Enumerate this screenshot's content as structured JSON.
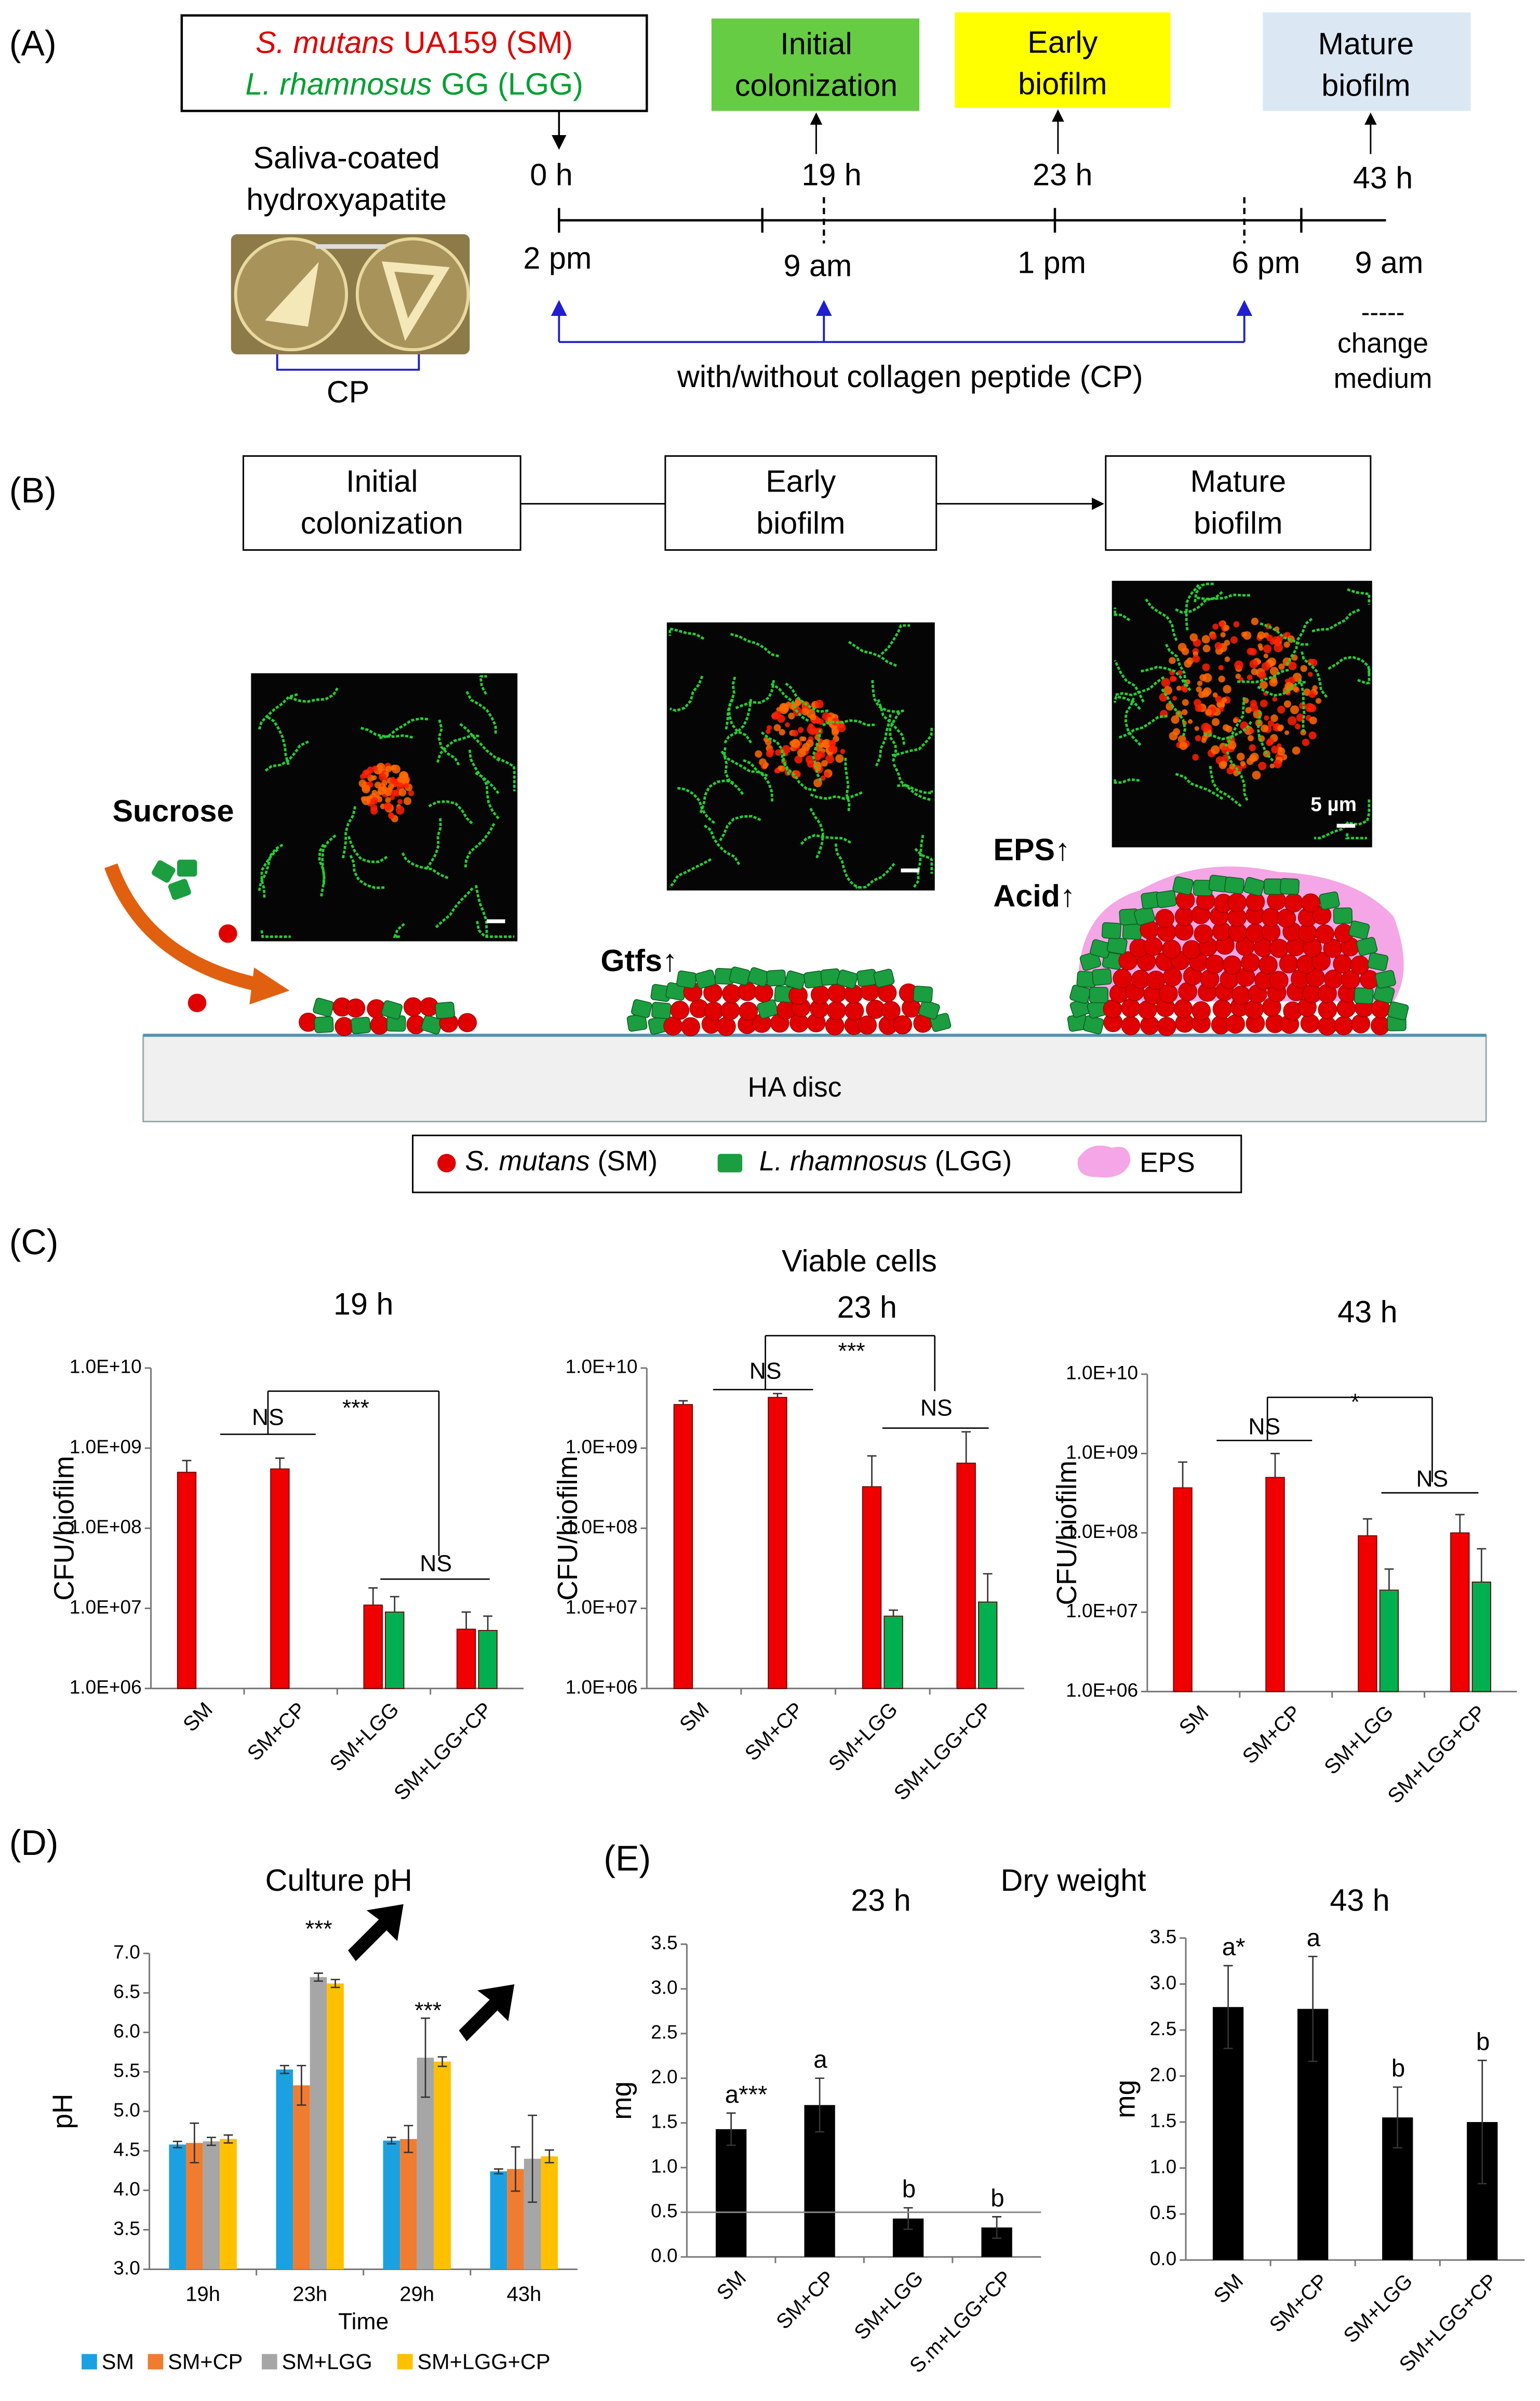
{
  "panel_a": {
    "label": "(A)",
    "strains": [
      {
        "species": "S. mutans",
        "strain": "UA159 (SM)"
      },
      {
        "species": "L. rhamnosus",
        "strain": "GG (LGG)"
      }
    ],
    "stages": [
      [
        "Initial",
        "colonization"
      ],
      [
        "Early",
        "biofilm"
      ],
      [
        "Mature",
        "biofilm"
      ]
    ],
    "times": [
      "0 h",
      "19 h",
      "23 h",
      "43 h"
    ],
    "clock": [
      "2 pm",
      "9 am",
      "1 pm",
      "6 pm",
      "9 am"
    ],
    "substrate": [
      "Saliva-coated",
      "hydroxyapatite"
    ],
    "photo_label": "CP",
    "treatment": "with/without collagen peptide (CP)",
    "note": [
      "-----",
      "change",
      "medium"
    ]
  },
  "panel_b": {
    "label": "(B)",
    "stages": [
      [
        "Initial",
        "colonization"
      ],
      [
        "Early",
        "biofilm"
      ],
      [
        "Mature",
        "biofilm"
      ]
    ],
    "sucrose": "Sucrose",
    "gtfs": "Gtfs↑",
    "eps": "EPS↑",
    "acid": "Acid↑",
    "scale_bar": "5 µm",
    "disc": "HA disc",
    "legend": [
      {
        "species": "S. mutans",
        "abbr": "(SM)"
      },
      {
        "species": "L. rhamnosus",
        "abbr": "(LGG)"
      },
      {
        "abbr": "EPS"
      }
    ]
  },
  "panel_c": {
    "label": "(C)",
    "title": "Viable cells"
  },
  "panel_d": {
    "label": "(D)"
  },
  "panel_e": {
    "label": "(E)",
    "title": "Dry weight"
  },
  "chart_data": [
    {
      "type": "bar",
      "title": "19 h",
      "ylabel": "CFU/biofilm",
      "log_y": true,
      "categories": [
        "SM",
        "SM+CP",
        "SM+LGG",
        "SM+LGG+CP"
      ],
      "series": [
        {
          "color": "#f00000",
          "values": [
            500000000,
            550000000,
            11000000,
            5500000
          ],
          "errors": [
            200000000,
            200000000,
            7000000,
            3500000
          ]
        },
        {
          "color": "#00b050",
          "values": [
            null,
            null,
            9000000,
            5300000
          ],
          "errors": [
            null,
            null,
            5000000,
            2700000
          ]
        }
      ],
      "ylim": [
        1000000,
        10000000000
      ],
      "yticks": [
        {
          "value": 1000000,
          "label": "1.0E+06"
        },
        {
          "value": 10000000,
          "label": "1.0E+07"
        },
        {
          "value": 100000000,
          "label": "1.0E+08"
        },
        {
          "value": 1000000000,
          "label": "1.0E+09"
        },
        {
          "value": 10000000000,
          "label": "1.0E+10"
        }
      ],
      "annotations": [
        "NS",
        "***",
        "NS"
      ]
    },
    {
      "type": "bar",
      "title": "23 h",
      "ylabel": "CFU/biofilm",
      "log_y": true,
      "categories": [
        "SM",
        "SM+CP",
        "SM+LGG",
        "SM+LGG+CP"
      ],
      "series": [
        {
          "color": "#f00000",
          "values": [
            3500000000,
            4300000000,
            330000000,
            650000000
          ],
          "errors": [
            400000000,
            500000000,
            470000000,
            950000000
          ]
        },
        {
          "color": "#00b050",
          "values": [
            null,
            null,
            8000000,
            12000000
          ],
          "errors": [
            null,
            null,
            1500000,
            15000000
          ]
        }
      ],
      "ylim": [
        1000000,
        10000000000
      ],
      "yticks": [
        {
          "value": 1000000,
          "label": "1.0E+06"
        },
        {
          "value": 10000000,
          "label": "1.0E+07"
        },
        {
          "value": 100000000,
          "label": "1.0E+08"
        },
        {
          "value": 1000000000,
          "label": "1.0E+09"
        },
        {
          "value": 10000000000,
          "label": "1.0E+10"
        }
      ],
      "annotations": [
        "NS",
        "***",
        "NS"
      ]
    },
    {
      "type": "bar",
      "title": "43 h",
      "ylabel": "CFU/biofilm",
      "log_y": true,
      "categories": [
        "SM",
        "SM+CP",
        "SM+LGG",
        "SM+LGG+CP"
      ],
      "series": [
        {
          "color": "#f00000",
          "values": [
            370000000,
            500000000,
            92000000,
            100000000
          ],
          "errors": [
            410000000,
            500000000,
            58000000,
            70000000
          ]
        },
        {
          "color": "#00b050",
          "values": [
            null,
            null,
            19000000,
            24000000
          ],
          "errors": [
            null,
            null,
            16000000,
            39000000
          ]
        }
      ],
      "ylim": [
        1000000,
        10000000000
      ],
      "yticks": [
        {
          "value": 1000000,
          "label": "1.0E+06"
        },
        {
          "value": 10000000,
          "label": "1.0E+07"
        },
        {
          "value": 100000000,
          "label": "1.0E+08"
        },
        {
          "value": 1000000000,
          "label": "1.0E+09"
        },
        {
          "value": 10000000000,
          "label": "1.0E+10"
        }
      ],
      "annotations": [
        "NS",
        "*",
        "NS"
      ]
    },
    {
      "type": "bar",
      "title": "Culture pH",
      "ylabel": "pH",
      "xlabel": "Time",
      "categories": [
        "19h",
        "23h",
        "29h",
        "43h"
      ],
      "series": [
        {
          "name": "SM",
          "color": "#1ba1e2",
          "values": [
            4.58,
            5.53,
            4.63,
            4.24
          ],
          "errors": [
            0.04,
            0.05,
            0.04,
            0.03
          ]
        },
        {
          "name": "SM+CP",
          "color": "#f07c30",
          "values": [
            4.6,
            5.33,
            4.65,
            4.27
          ],
          "errors": [
            0.25,
            0.25,
            0.17,
            0.28
          ]
        },
        {
          "name": "SM+LGG",
          "color": "#a6a6a6",
          "values": [
            4.62,
            6.7,
            5.68,
            4.4
          ],
          "errors": [
            0.05,
            0.05,
            0.5,
            0.55
          ]
        },
        {
          "name": "SM+LGG+CP",
          "color": "#ffc000",
          "values": [
            4.65,
            6.62,
            5.63,
            4.43
          ],
          "errors": [
            0.05,
            0.05,
            0.06,
            0.08
          ]
        }
      ],
      "ylim": [
        3,
        7
      ],
      "yticks": [
        {
          "value": 3,
          "label": "3.0"
        },
        3.5,
        {
          "value": 4,
          "label": "4.0"
        },
        4.5,
        {
          "value": 5,
          "label": "5.0"
        },
        5.5,
        {
          "value": 6,
          "label": "6.0"
        },
        6.5,
        {
          "value": 7,
          "label": "7.0"
        }
      ],
      "legend": "bottom",
      "annotations": [
        "***",
        "***"
      ]
    },
    {
      "type": "bar",
      "title": "23 h",
      "ylabel": "mg",
      "categories": [
        "SM",
        "SM+CP",
        "SM+LGG",
        "S.m+LGG+CP"
      ],
      "color": "#000000",
      "values": [
        1.43,
        1.7,
        0.43,
        0.33
      ],
      "errors": [
        0.18,
        0.3,
        0.12,
        0.12
      ],
      "letters": [
        "a***",
        "a",
        "b",
        "b"
      ],
      "hline": 0.5,
      "ylim": [
        0,
        3.5
      ],
      "yticks": [
        {
          "value": 0,
          "label": "0.0"
        },
        0.5,
        {
          "value": 1,
          "label": "1.0"
        },
        1.5,
        {
          "value": 2,
          "label": "2.0"
        },
        2.5,
        {
          "value": 3,
          "label": "3.0"
        },
        3.5
      ]
    },
    {
      "type": "bar",
      "title": "43 h",
      "ylabel": "mg",
      "categories": [
        "SM",
        "SM+CP",
        "SM+LGG",
        "SM+LGG+CP"
      ],
      "color": "#000000",
      "values": [
        2.75,
        2.73,
        1.55,
        1.5
      ],
      "errors": [
        0.45,
        0.57,
        0.33,
        0.67
      ],
      "letters": [
        "a*",
        "a",
        "b",
        "b"
      ],
      "ylim": [
        0,
        3.5
      ],
      "yticks": [
        {
          "value": 0,
          "label": "0.0"
        },
        0.5,
        {
          "value": 1,
          "label": "1.0"
        },
        1.5,
        {
          "value": 2,
          "label": "2.0"
        },
        2.5,
        {
          "value": 3,
          "label": "3.0"
        },
        3.5
      ]
    }
  ]
}
